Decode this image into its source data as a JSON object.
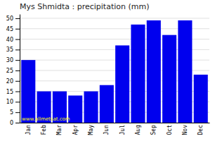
{
  "chart_data": {
    "type": "bar",
    "title": "Mys Shmidta : precipitation (mm)",
    "categories": [
      "Jan",
      "Feb",
      "Mar",
      "Apr",
      "May",
      "Jun",
      "Jul",
      "Aug",
      "Sep",
      "Oct",
      "Nov",
      "Dec"
    ],
    "values": [
      30,
      15,
      15,
      13,
      15,
      18,
      37,
      47,
      49,
      42,
      49,
      23
    ],
    "color": "#0000EE",
    "ylim": [
      0,
      52
    ],
    "yticks": [
      0,
      5,
      10,
      15,
      20,
      25,
      30,
      35,
      40,
      45,
      50
    ],
    "grid": true,
    "annotations": [
      {
        "text": "www.allmetsat.com",
        "color": "#FFFF00"
      }
    ]
  }
}
